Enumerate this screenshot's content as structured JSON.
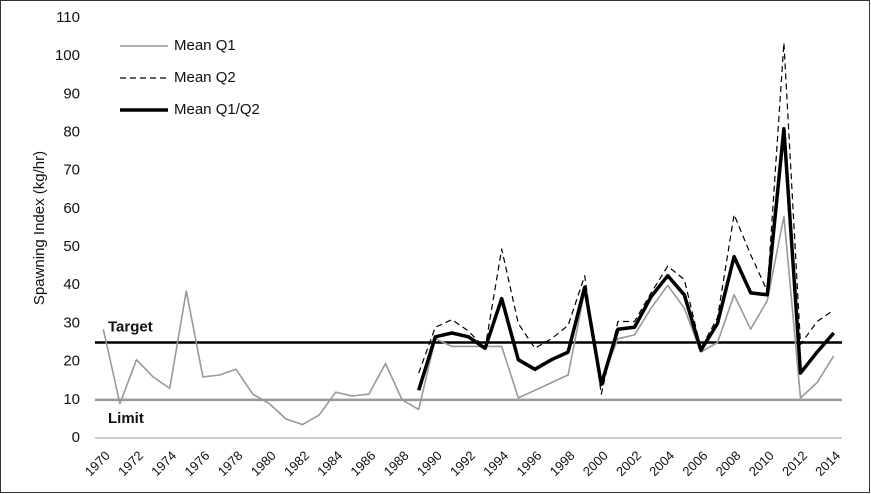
{
  "chart_data": {
    "type": "line",
    "y_label": "Spawning Index (kg/hr)",
    "categories": [
      "1970",
      null,
      "1972",
      null,
      "1974",
      null,
      "1976",
      null,
      "1978",
      null,
      "1980",
      null,
      "1982",
      null,
      "1984",
      null,
      "1986",
      null,
      "1988",
      null,
      "1990",
      null,
      "1992",
      null,
      "1994",
      null,
      "1996",
      null,
      "1998",
      null,
      "2000",
      null,
      "2002",
      null,
      "2004",
      null,
      "2006",
      null,
      "2008",
      null,
      "2010",
      null,
      "2012",
      null,
      "2014"
    ],
    "series": [
      {
        "name": "Mean Q1",
        "color": "#999999",
        "style": "solid",
        "width": 1.6,
        "values": [
          28.5,
          9,
          20.5,
          16,
          13,
          38.5,
          16,
          16.5,
          18,
          11.5,
          9,
          5,
          3.5,
          6,
          12,
          11,
          11.5,
          19.5,
          10,
          7.5,
          26,
          24,
          24,
          24,
          24,
          10.5,
          12.5,
          14.5,
          16.5,
          38.5,
          15,
          26,
          27,
          34,
          40,
          34,
          22.5,
          25,
          37.5,
          28.5,
          36,
          58,
          10.5,
          14.5,
          21.5
        ]
      },
      {
        "name": "Mean Q2",
        "color": "#000000",
        "style": "dashed",
        "width": 1.2,
        "values": [
          null,
          null,
          null,
          null,
          null,
          null,
          null,
          null,
          null,
          null,
          null,
          null,
          null,
          null,
          null,
          null,
          null,
          null,
          null,
          17,
          29,
          31,
          28,
          23.5,
          49.5,
          30,
          23.5,
          26,
          29.5,
          42.5,
          11.5,
          30.5,
          30.5,
          38,
          45,
          41.5,
          23.5,
          31.5,
          58.5,
          48,
          38.5,
          103.5,
          24.5,
          30.5,
          33.5
        ]
      },
      {
        "name": "Mean Q1/Q2",
        "color": "#000000",
        "style": "solid",
        "width": 3.5,
        "values": [
          null,
          null,
          null,
          null,
          null,
          null,
          null,
          null,
          null,
          null,
          null,
          null,
          null,
          null,
          null,
          null,
          null,
          null,
          null,
          12.5,
          26.5,
          27.5,
          26.5,
          23.5,
          36.5,
          20.5,
          18,
          20.5,
          22.5,
          39.5,
          14,
          28.5,
          29,
          37,
          42.5,
          37.5,
          23,
          30,
          47.5,
          38,
          37.5,
          81,
          17,
          22.5,
          27.5
        ]
      }
    ],
    "reference_lines": [
      {
        "value": 25,
        "label": "Target",
        "color": "#000000"
      },
      {
        "value": 10,
        "label": "Limit",
        "color": "#999999"
      }
    ],
    "ylim": [
      0,
      110
    ],
    "yticks": [
      0,
      10,
      20,
      30,
      40,
      50,
      60,
      70,
      80,
      90,
      100,
      110
    ],
    "grid": false,
    "legend": "top-left"
  }
}
